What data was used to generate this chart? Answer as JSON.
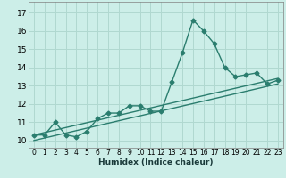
{
  "xlabel": "Humidex (Indice chaleur)",
  "background_color": "#cceee8",
  "grid_color": "#b0d8d0",
  "line_color": "#2a7d6e",
  "x_ticks": [
    0,
    1,
    2,
    3,
    4,
    5,
    6,
    7,
    8,
    9,
    10,
    11,
    12,
    13,
    14,
    15,
    16,
    17,
    18,
    19,
    20,
    21,
    22,
    23
  ],
  "x_tick_labels": [
    "0",
    "1",
    "2",
    "3",
    "4",
    "5",
    "6",
    "7",
    "8",
    "9",
    "10",
    "11",
    "12",
    "13",
    "14",
    "15",
    "16",
    "17",
    "18",
    "19",
    "20",
    "21",
    "22",
    "23"
  ],
  "y_ticks": [
    10,
    11,
    12,
    13,
    14,
    15,
    16,
    17
  ],
  "ylim": [
    9.6,
    17.6
  ],
  "xlim": [
    -0.5,
    23.5
  ],
  "line1_x": [
    0,
    1,
    2,
    3,
    4,
    5,
    6,
    7,
    8,
    9,
    10,
    11,
    12,
    13,
    14,
    15,
    16,
    17,
    18,
    19,
    20,
    21,
    22,
    23
  ],
  "line1_y": [
    10.3,
    10.3,
    11.0,
    10.3,
    10.2,
    10.5,
    11.2,
    11.5,
    11.5,
    11.9,
    11.9,
    11.6,
    11.6,
    13.2,
    14.8,
    16.6,
    16.0,
    15.3,
    14.0,
    13.5,
    13.6,
    13.7,
    13.1,
    13.3
  ],
  "line2_x": [
    0,
    23
  ],
  "line2_y": [
    10.3,
    13.4
  ],
  "line3_x": [
    0,
    23
  ],
  "line3_y": [
    10.0,
    13.1
  ],
  "marker_style": "D",
  "marker_size": 2.5,
  "line_width": 1.0
}
